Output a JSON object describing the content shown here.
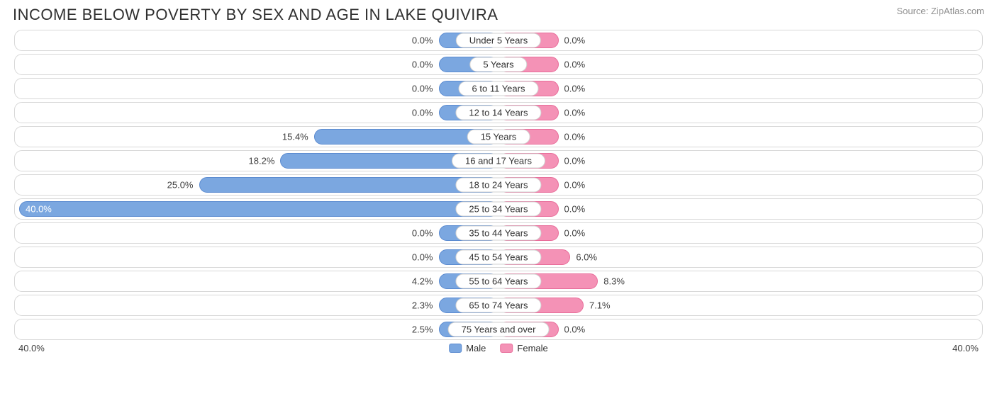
{
  "title": "INCOME BELOW POVERTY BY SEX AND AGE IN LAKE QUIVIRA",
  "source": "Source: ZipAtlas.com",
  "chart": {
    "type": "diverging-bar",
    "max_percent": 40.0,
    "min_bar_percent": 5.0,
    "axis_label_left": "40.0%",
    "axis_label_right": "40.0%",
    "male_color": "#7ba7e0",
    "male_border": "#5b8bd0",
    "female_color": "#f492b6",
    "female_border": "#e86d9a",
    "row_border_color": "#d8d8d8",
    "background_color": "#ffffff",
    "text_color": "#303030",
    "value_fontsize": 13,
    "category_fontsize": 13,
    "title_fontsize": 22,
    "legend": [
      {
        "label": "Male",
        "color": "#7ba7e0",
        "border": "#5b8bd0"
      },
      {
        "label": "Female",
        "color": "#f492b6",
        "border": "#e86d9a"
      }
    ],
    "rows": [
      {
        "category": "Under 5 Years",
        "male": 0.0,
        "female": 0.0
      },
      {
        "category": "5 Years",
        "male": 0.0,
        "female": 0.0
      },
      {
        "category": "6 to 11 Years",
        "male": 0.0,
        "female": 0.0
      },
      {
        "category": "12 to 14 Years",
        "male": 0.0,
        "female": 0.0
      },
      {
        "category": "15 Years",
        "male": 15.4,
        "female": 0.0
      },
      {
        "category": "16 and 17 Years",
        "male": 18.2,
        "female": 0.0
      },
      {
        "category": "18 to 24 Years",
        "male": 25.0,
        "female": 0.0
      },
      {
        "category": "25 to 34 Years",
        "male": 40.0,
        "female": 0.0
      },
      {
        "category": "35 to 44 Years",
        "male": 0.0,
        "female": 0.0
      },
      {
        "category": "45 to 54 Years",
        "male": 0.0,
        "female": 6.0
      },
      {
        "category": "55 to 64 Years",
        "male": 4.2,
        "female": 8.3
      },
      {
        "category": "65 to 74 Years",
        "male": 2.3,
        "female": 7.1
      },
      {
        "category": "75 Years and over",
        "male": 2.5,
        "female": 0.0
      }
    ]
  }
}
